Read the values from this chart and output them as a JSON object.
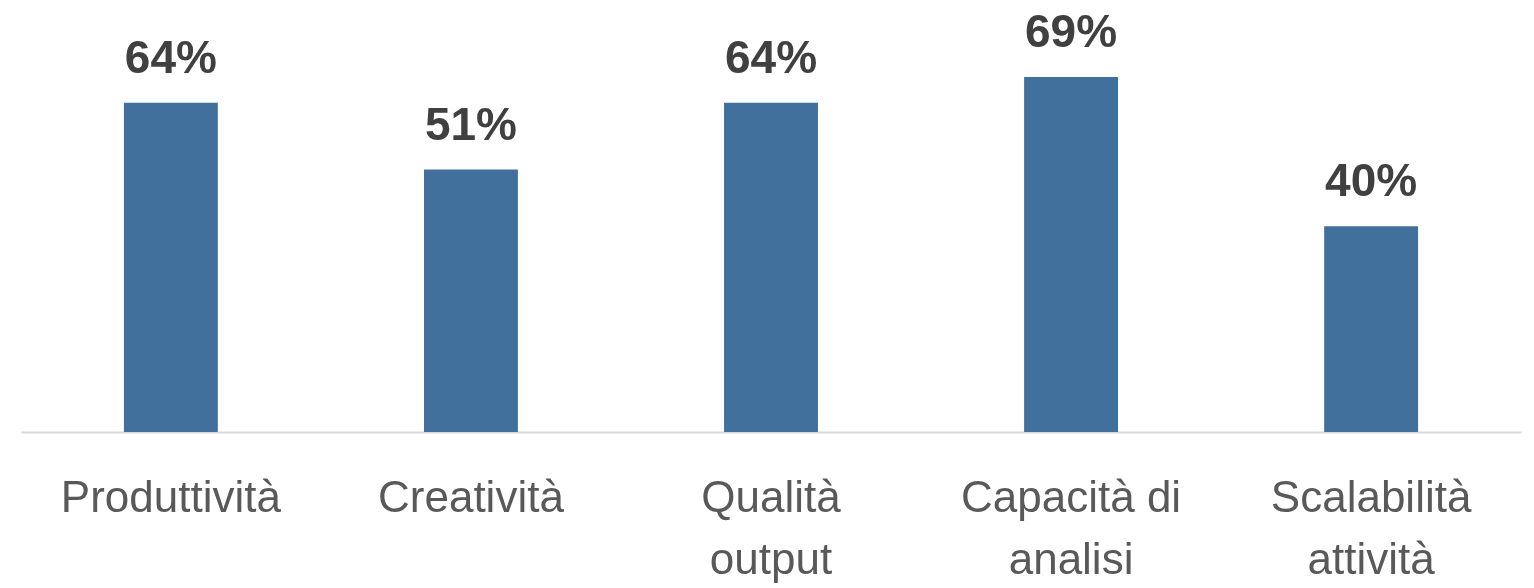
{
  "chart_data": {
    "type": "bar",
    "categories": [
      "Produttività",
      "Creatività",
      "Qualità output",
      "Capacità di analisi",
      "Scalabilità attività"
    ],
    "values": [
      64,
      51,
      64,
      69,
      40
    ],
    "value_labels": [
      "64%",
      "51%",
      "64%",
      "69%",
      "40%"
    ],
    "color": "#41709c"
  }
}
